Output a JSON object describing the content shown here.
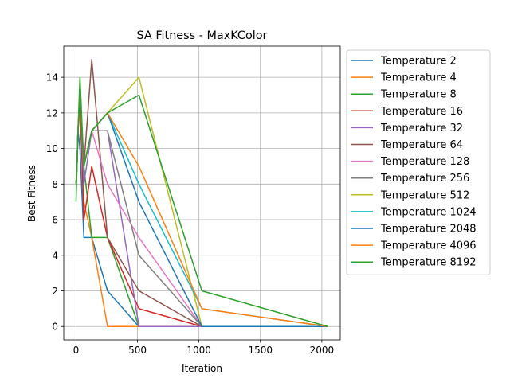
{
  "chart_data": {
    "type": "line",
    "title": "SA Fitness - MaxKColor",
    "xlabel": "Iteration",
    "ylabel": "Best Fitness",
    "xlim": [
      -100,
      2150
    ],
    "ylim": [
      -0.75,
      15.75
    ],
    "xticks": [
      0,
      500,
      1000,
      1500,
      2000
    ],
    "yticks": [
      0,
      2,
      4,
      6,
      8,
      10,
      12,
      14
    ],
    "grid": true,
    "legend_position": "outside right, top",
    "series": [
      {
        "name": "Temperature 2",
        "color": "#1f77b4",
        "points": [
          [
            0,
            8
          ],
          [
            8,
            9
          ],
          [
            16,
            11
          ],
          [
            32,
            10
          ],
          [
            64,
            5
          ],
          [
            128,
            5
          ],
          [
            256,
            2
          ],
          [
            512,
            0
          ],
          [
            1024,
            0
          ],
          [
            2048,
            0
          ]
        ]
      },
      {
        "name": "Temperature 4",
        "color": "#ff7f0e",
        "points": [
          [
            0,
            8
          ],
          [
            8,
            9
          ],
          [
            16,
            11
          ],
          [
            32,
            12
          ],
          [
            64,
            7
          ],
          [
            128,
            5
          ],
          [
            256,
            0
          ],
          [
            512,
            0
          ],
          [
            1024,
            0
          ],
          [
            2048,
            0
          ]
        ]
      },
      {
        "name": "Temperature 8",
        "color": "#2ca02c",
        "points": [
          [
            0,
            7
          ],
          [
            8,
            9
          ],
          [
            16,
            11
          ],
          [
            32,
            14
          ],
          [
            64,
            9
          ],
          [
            128,
            5
          ],
          [
            256,
            5
          ],
          [
            512,
            0
          ],
          [
            1024,
            0
          ],
          [
            2048,
            0
          ]
        ]
      },
      {
        "name": "Temperature 16",
        "color": "#d62728",
        "points": [
          [
            0,
            8
          ],
          [
            8,
            9
          ],
          [
            16,
            11
          ],
          [
            32,
            13
          ],
          [
            64,
            6
          ],
          [
            128,
            9
          ],
          [
            256,
            5
          ],
          [
            512,
            1
          ],
          [
            1024,
            0
          ],
          [
            2048,
            0
          ]
        ]
      },
      {
        "name": "Temperature 32",
        "color": "#9467bd",
        "points": [
          [
            0,
            8
          ],
          [
            8,
            9
          ],
          [
            16,
            11
          ],
          [
            32,
            13
          ],
          [
            64,
            8
          ],
          [
            128,
            11
          ],
          [
            256,
            11
          ],
          [
            512,
            0
          ],
          [
            1024,
            0
          ],
          [
            2048,
            0
          ]
        ]
      },
      {
        "name": "Temperature 64",
        "color": "#8c564b",
        "points": [
          [
            0,
            8
          ],
          [
            8,
            9
          ],
          [
            16,
            11
          ],
          [
            32,
            13
          ],
          [
            64,
            9
          ],
          [
            128,
            15
          ],
          [
            256,
            5
          ],
          [
            512,
            2
          ],
          [
            1024,
            0
          ],
          [
            2048,
            0
          ]
        ]
      },
      {
        "name": "Temperature 128",
        "color": "#e377c2",
        "points": [
          [
            0,
            8
          ],
          [
            8,
            9
          ],
          [
            16,
            11
          ],
          [
            32,
            13
          ],
          [
            64,
            9
          ],
          [
            128,
            11
          ],
          [
            256,
            8
          ],
          [
            512,
            5
          ],
          [
            1024,
            0
          ],
          [
            2048,
            0
          ]
        ]
      },
      {
        "name": "Temperature 256",
        "color": "#7f7f7f",
        "points": [
          [
            0,
            8
          ],
          [
            8,
            9
          ],
          [
            16,
            11
          ],
          [
            32,
            13
          ],
          [
            64,
            9
          ],
          [
            128,
            11
          ],
          [
            256,
            11
          ],
          [
            512,
            4
          ],
          [
            1024,
            0
          ],
          [
            2048,
            0
          ]
        ]
      },
      {
        "name": "Temperature 512",
        "color": "#bcbd22",
        "points": [
          [
            0,
            8
          ],
          [
            8,
            9
          ],
          [
            16,
            11
          ],
          [
            32,
            13
          ],
          [
            64,
            9
          ],
          [
            128,
            11
          ],
          [
            256,
            12
          ],
          [
            512,
            14
          ],
          [
            1024,
            0
          ],
          [
            2048,
            0
          ]
        ]
      },
      {
        "name": "Temperature 1024",
        "color": "#17becf",
        "points": [
          [
            0,
            8
          ],
          [
            8,
            9
          ],
          [
            16,
            11
          ],
          [
            32,
            13
          ],
          [
            64,
            9
          ],
          [
            128,
            11
          ],
          [
            256,
            12
          ],
          [
            512,
            8
          ],
          [
            1024,
            1
          ],
          [
            2048,
            0
          ]
        ]
      },
      {
        "name": "Temperature 2048",
        "color": "#1f77b4",
        "points": [
          [
            0,
            8
          ],
          [
            8,
            9
          ],
          [
            16,
            11
          ],
          [
            32,
            13
          ],
          [
            64,
            9
          ],
          [
            128,
            11
          ],
          [
            256,
            12
          ],
          [
            512,
            7
          ],
          [
            1024,
            0
          ],
          [
            2048,
            0
          ]
        ]
      },
      {
        "name": "Temperature 4096",
        "color": "#ff7f0e",
        "points": [
          [
            0,
            8
          ],
          [
            8,
            9
          ],
          [
            16,
            11
          ],
          [
            32,
            13
          ],
          [
            64,
            9
          ],
          [
            128,
            11
          ],
          [
            256,
            12
          ],
          [
            512,
            9
          ],
          [
            1024,
            1
          ],
          [
            2048,
            0
          ]
        ]
      },
      {
        "name": "Temperature 8192",
        "color": "#2ca02c",
        "points": [
          [
            0,
            8
          ],
          [
            8,
            9
          ],
          [
            16,
            11
          ],
          [
            32,
            13
          ],
          [
            64,
            9
          ],
          [
            128,
            11
          ],
          [
            256,
            12
          ],
          [
            512,
            13
          ],
          [
            1024,
            2
          ],
          [
            2048,
            0
          ]
        ]
      }
    ]
  }
}
